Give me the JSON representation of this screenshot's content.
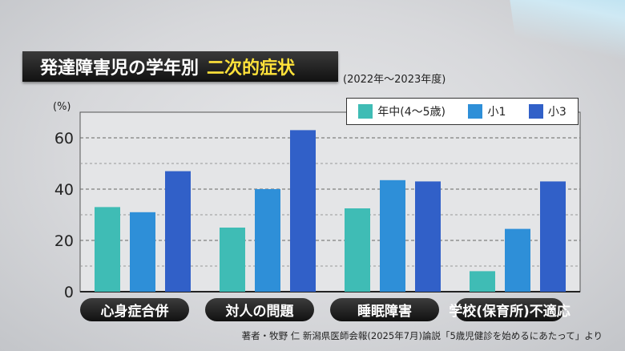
{
  "header": {
    "title_main": "発達障害児の学年別",
    "title_highlight": "二次的症状",
    "period": "(2022年〜2023年度)"
  },
  "colors": {
    "teal": "#3fbcb5",
    "blue": "#2e8fd8",
    "navy": "#3160c8"
  },
  "chart_data": {
    "type": "bar",
    "ylabel": "(%)",
    "ylim": [
      0,
      70
    ],
    "yticks": [
      0,
      20,
      40,
      60
    ],
    "grid": true,
    "legend_position": "top-right",
    "categories": [
      "心身症合併",
      "対人の問題",
      "睡眠障害",
      "学校(保育所)不適応"
    ],
    "series": [
      {
        "name": "年中(4〜5歳)",
        "color": "#3fbcb5",
        "values": [
          33,
          25,
          32.5,
          8
        ]
      },
      {
        "name": "小1",
        "color": "#2e8fd8",
        "values": [
          31,
          40,
          43.5,
          24.5
        ]
      },
      {
        "name": "小3",
        "color": "#3160c8",
        "values": [
          47,
          63,
          43,
          43
        ]
      }
    ]
  },
  "source": "著者・牧野 仁 新潟県医師会報(2025年7月)論説「5歳児健診を始めるにあたって」より"
}
